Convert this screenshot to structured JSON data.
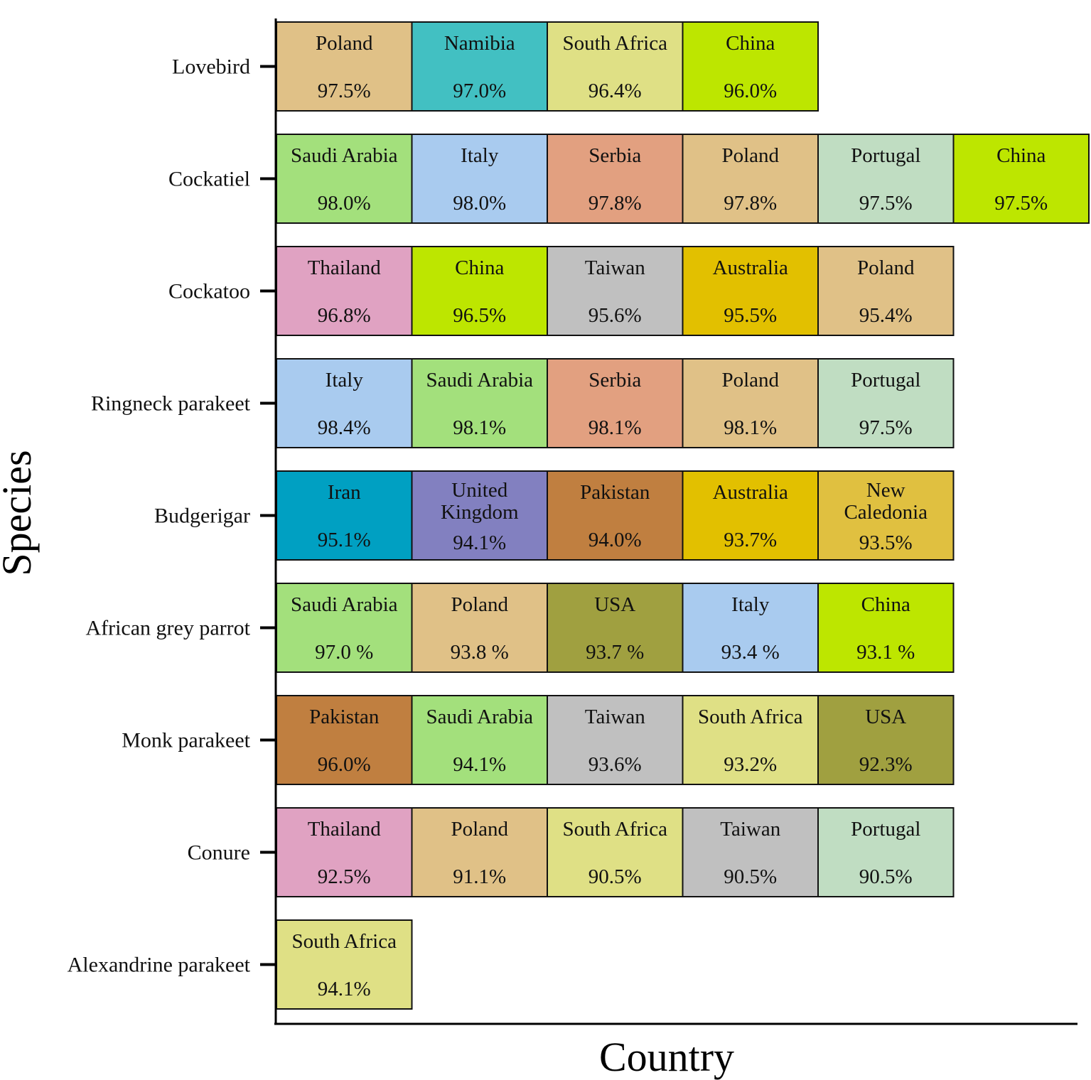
{
  "chart_data": {
    "type": "table",
    "xlabel": "Country",
    "ylabel": "Species",
    "colors": {
      "Poland": "#e0c187",
      "Namibia": "#42c0c2",
      "South Africa": "#dfe085",
      "China": "#bde600",
      "Saudi Arabia": "#a3e07c",
      "Italy": "#a9cbef",
      "Serbia": "#e2a080",
      "Portugal": "#c0ddc2",
      "Thailand": "#e0a2c2",
      "Taiwan": "#c0c0c0",
      "Australia": "#e2c000",
      "Iran": "#00a0c2",
      "United Kingdom": "#8280c0",
      "Pakistan": "#c07f40",
      "New Caledonia": "#e0c040",
      "USA": "#a0a040"
    },
    "rows": [
      {
        "species": "Lovebird",
        "entries": [
          {
            "country": "Poland",
            "value": "97.5%"
          },
          {
            "country": "Namibia",
            "value": "97.0%"
          },
          {
            "country": "South Africa",
            "value": "96.4%"
          },
          {
            "country": "China",
            "value": "96.0%"
          }
        ]
      },
      {
        "species": "Cockatiel",
        "entries": [
          {
            "country": "Saudi Arabia",
            "value": "98.0%"
          },
          {
            "country": "Italy",
            "value": "98.0%"
          },
          {
            "country": "Serbia",
            "value": "97.8%"
          },
          {
            "country": "Poland",
            "value": "97.8%"
          },
          {
            "country": "Portugal",
            "value": "97.5%"
          },
          {
            "country": "China",
            "value": "97.5%"
          }
        ]
      },
      {
        "species": "Cockatoo",
        "entries": [
          {
            "country": "Thailand",
            "value": "96.8%"
          },
          {
            "country": "China",
            "value": "96.5%"
          },
          {
            "country": "Taiwan",
            "value": "95.6%"
          },
          {
            "country": "Australia",
            "value": "95.5%"
          },
          {
            "country": "Poland",
            "value": "95.4%"
          }
        ]
      },
      {
        "species": "Ringneck parakeet",
        "entries": [
          {
            "country": "Italy",
            "value": "98.4%"
          },
          {
            "country": "Saudi Arabia",
            "value": "98.1%"
          },
          {
            "country": "Serbia",
            "value": "98.1%"
          },
          {
            "country": "Poland",
            "value": "98.1%"
          },
          {
            "country": "Portugal",
            "value": "97.5%"
          }
        ]
      },
      {
        "species": "Budgerigar",
        "entries": [
          {
            "country": "Iran",
            "value": "95.1%"
          },
          {
            "country": "United Kingdom",
            "value": "94.1%"
          },
          {
            "country": "Pakistan",
            "value": "94.0%"
          },
          {
            "country": "Australia",
            "value": "93.7%"
          },
          {
            "country": "New Caledonia",
            "value": "93.5%"
          }
        ]
      },
      {
        "species": "African grey parrot",
        "entries": [
          {
            "country": "Saudi Arabia",
            "value": "97.0 %"
          },
          {
            "country": "Poland",
            "value": "93.8 %"
          },
          {
            "country": "USA",
            "value": "93.7 %"
          },
          {
            "country": "Italy",
            "value": "93.4 %"
          },
          {
            "country": "China",
            "value": "93.1 %"
          }
        ]
      },
      {
        "species": "Monk parakeet",
        "entries": [
          {
            "country": "Pakistan",
            "value": "96.0%"
          },
          {
            "country": "Saudi Arabia",
            "value": "94.1%"
          },
          {
            "country": "Taiwan",
            "value": "93.6%"
          },
          {
            "country": "South Africa",
            "value": "93.2%"
          },
          {
            "country": "USA",
            "value": "92.3%"
          }
        ]
      },
      {
        "species": "Conure",
        "entries": [
          {
            "country": "Thailand",
            "value": "92.5%"
          },
          {
            "country": "Poland",
            "value": "91.1%"
          },
          {
            "country": "South Africa",
            "value": "90.5%"
          },
          {
            "country": "Taiwan",
            "value": "90.5%"
          },
          {
            "country": "Portugal",
            "value": "90.5%"
          }
        ]
      },
      {
        "species": "Alexandrine parakeet",
        "entries": [
          {
            "country": "South Africa",
            "value": "94.1%"
          }
        ]
      }
    ]
  }
}
